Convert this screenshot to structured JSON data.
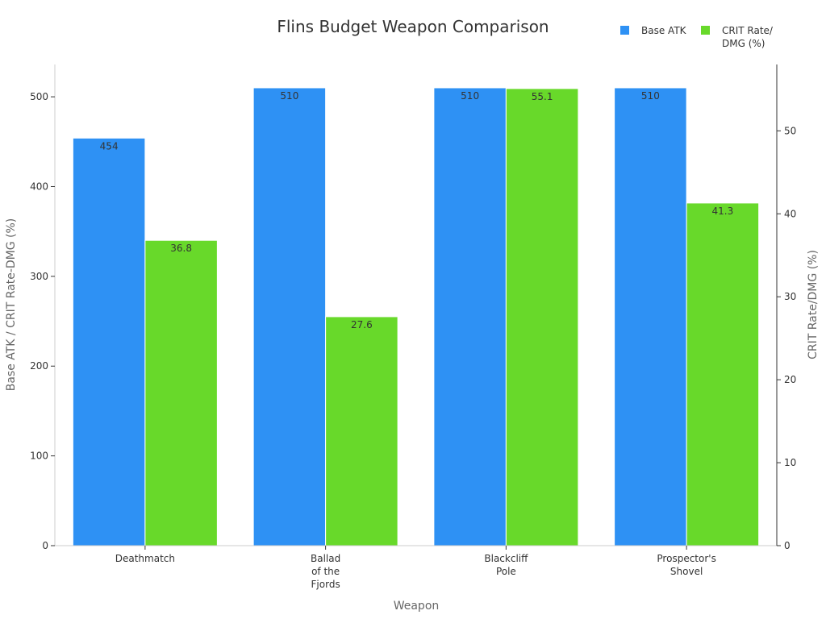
{
  "chart_data": {
    "type": "bar",
    "title": "Flins Budget Weapon Comparison",
    "xlabel": "Weapon",
    "ylabel_left": "Base ATK / CRIT Rate-DMG (%)",
    "ylabel_right": "CRIT Rate/DMG (%)",
    "categories": [
      [
        "Deathmatch"
      ],
      [
        "Ballad",
        "of the",
        "Fjords"
      ],
      [
        "Blackcliff",
        "Pole"
      ],
      [
        "Prospector's",
        "Shovel"
      ]
    ],
    "series": [
      {
        "name": "Base ATK",
        "axis": "left",
        "color": "#2e91f4",
        "values": [
          454,
          510,
          510,
          510
        ],
        "labels": [
          "454",
          "510",
          "510",
          "510"
        ]
      },
      {
        "name": "CRIT Rate/DMG (%)",
        "axis": "right",
        "color": "#68d92a",
        "values": [
          36.8,
          27.6,
          55.1,
          41.3
        ],
        "labels": [
          "36.8",
          "27.6",
          "55.1",
          "41.3"
        ]
      }
    ],
    "legend": {
      "position": "top-right",
      "entries": [
        {
          "lines": [
            "Base ATK"
          ],
          "color": "#2e91f4"
        },
        {
          "lines": [
            "CRIT Rate/",
            "DMG (%)"
          ],
          "color": "#68d92a"
        }
      ]
    },
    "ylim_left": [
      0,
      536
    ],
    "yticks_left": [
      0,
      100,
      200,
      300,
      400,
      500
    ],
    "ylim_right": [
      0,
      58.0
    ],
    "yticks_right": [
      0,
      10,
      20,
      30,
      40,
      50
    ]
  }
}
